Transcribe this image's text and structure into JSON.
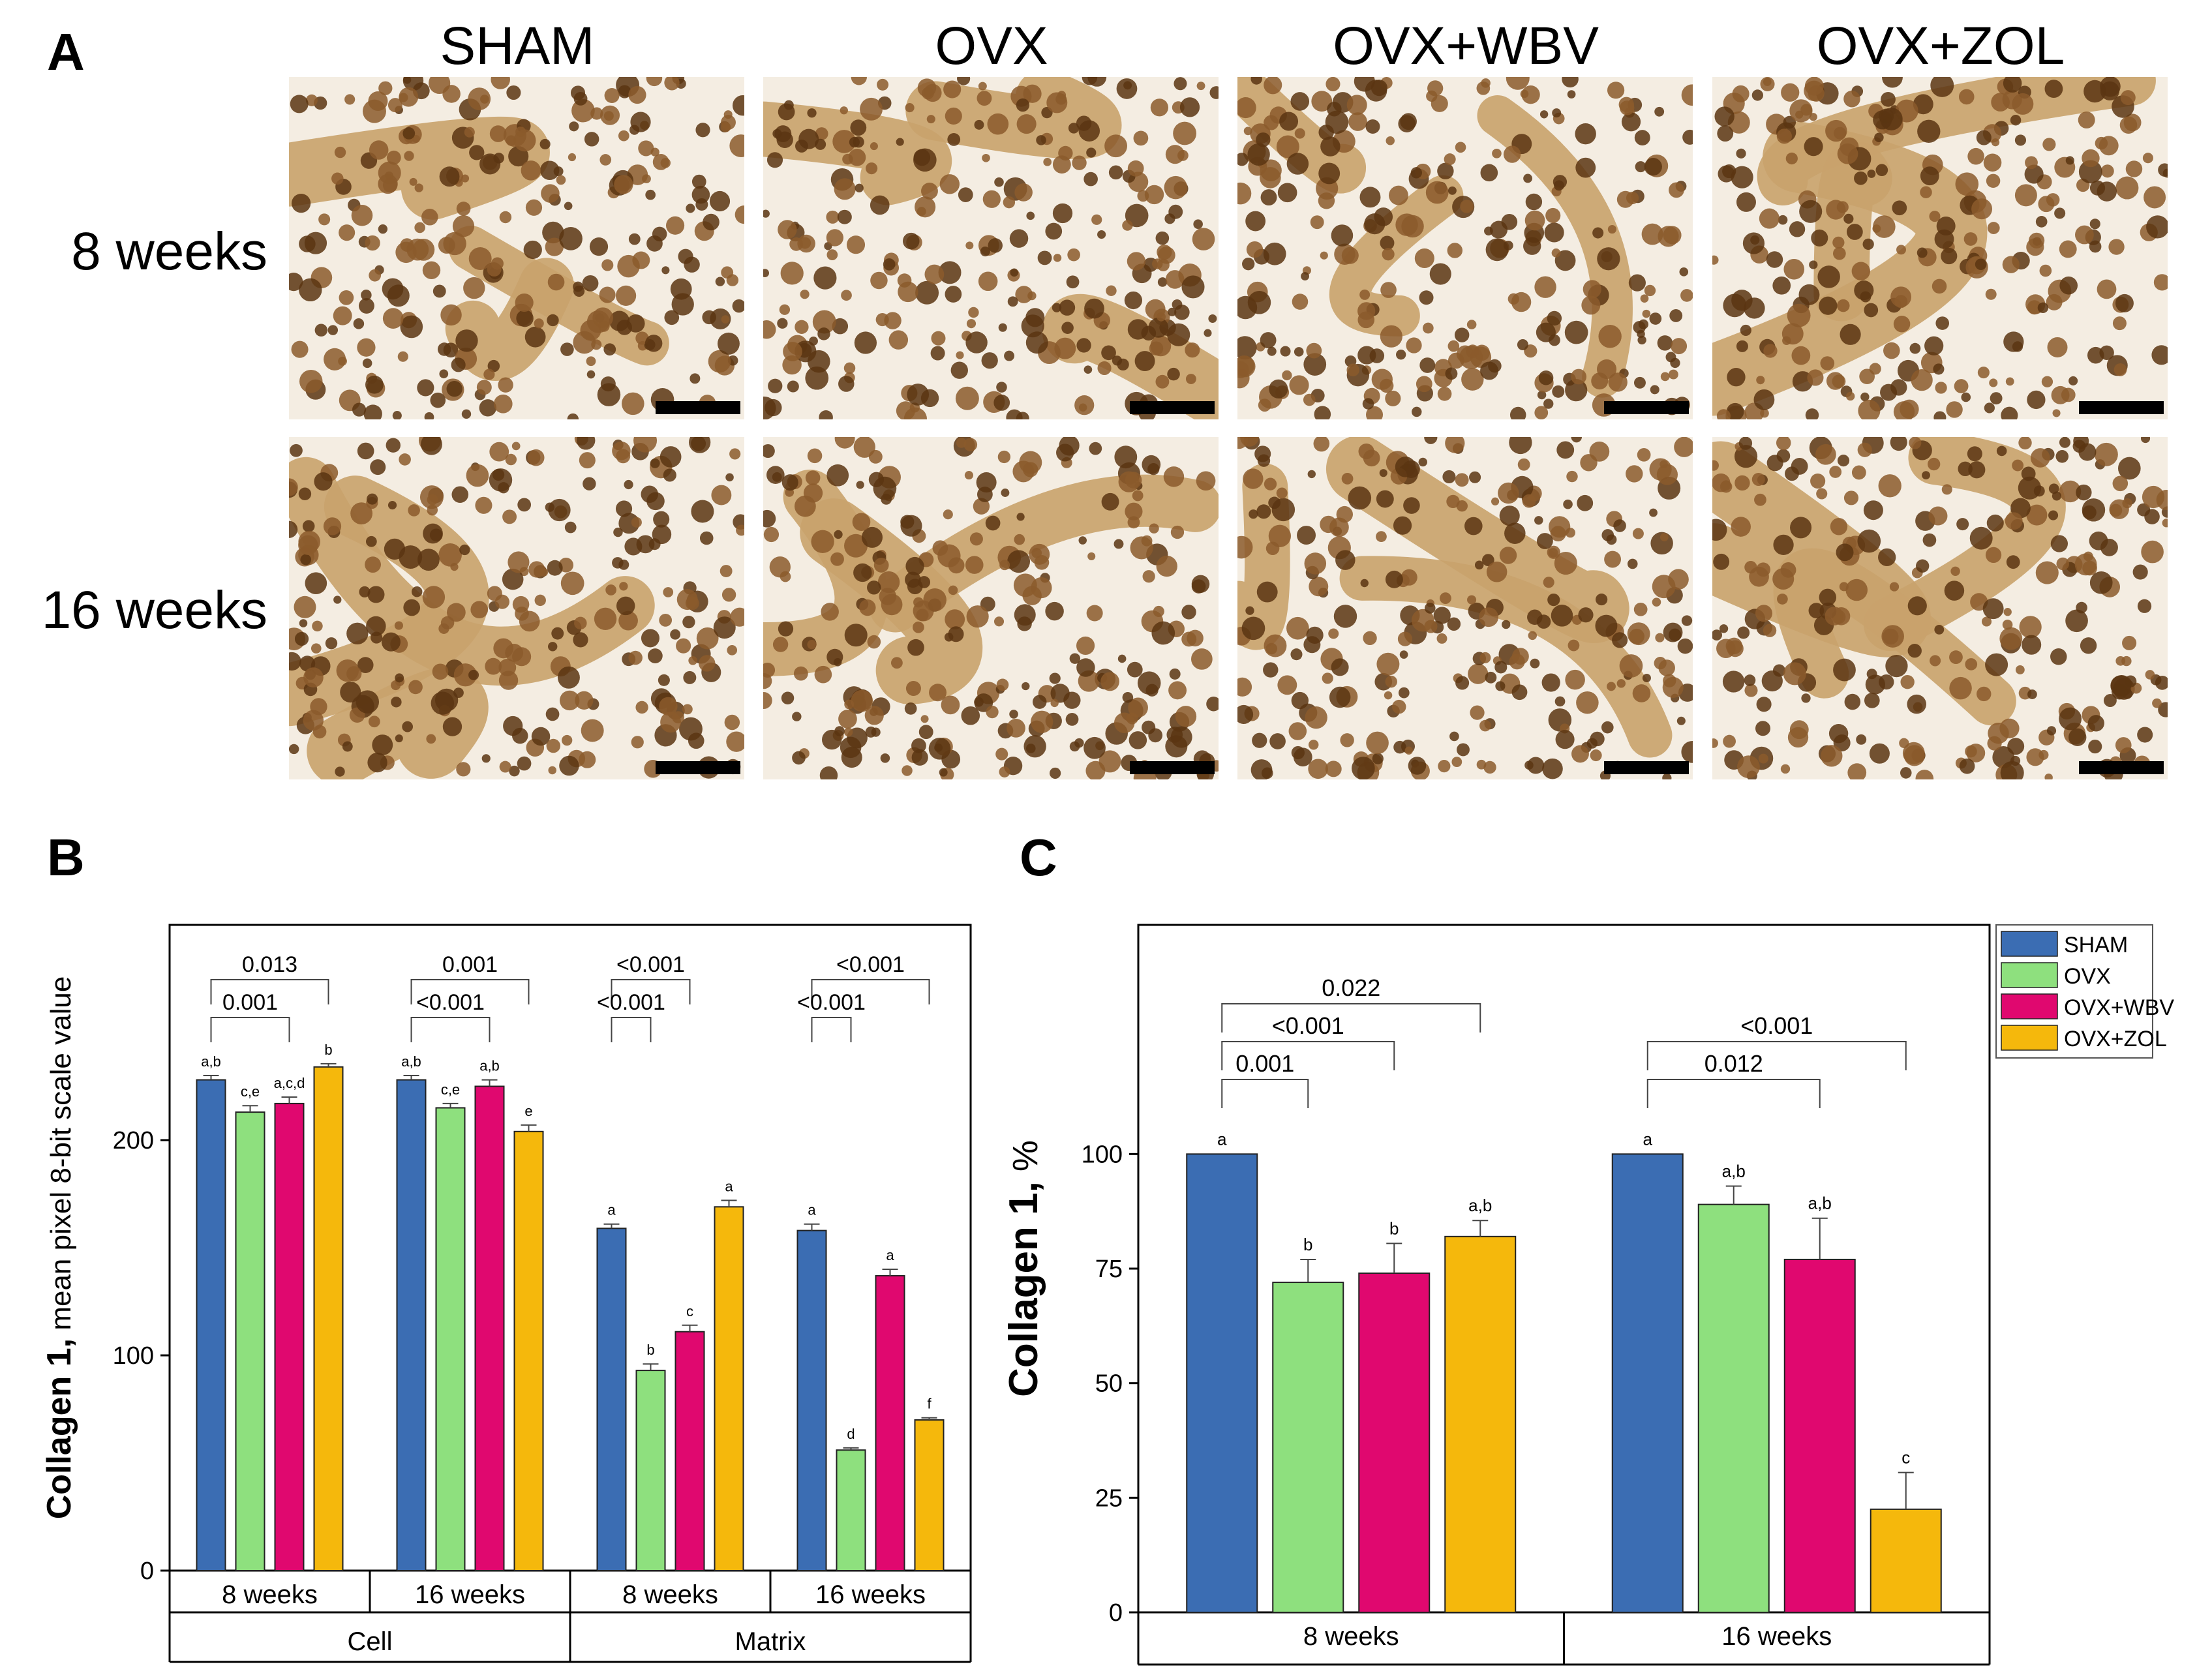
{
  "panel_a": {
    "letter": "A",
    "columns": [
      "SHAM",
      "OVX",
      "OVX+WBV",
      "OVX+ZOL"
    ],
    "rows": [
      "8 weeks",
      "16 weeks"
    ],
    "images": [
      {
        "id": "img-8w-sham",
        "row": 0,
        "col": 0
      },
      {
        "id": "img-8w-ovx",
        "row": 0,
        "col": 1
      },
      {
        "id": "img-8w-wbv",
        "row": 0,
        "col": 2
      },
      {
        "id": "img-8w-zol",
        "row": 0,
        "col": 3
      },
      {
        "id": "img-16w-sham",
        "row": 1,
        "col": 0
      },
      {
        "id": "img-16w-ovx",
        "row": 1,
        "col": 1
      },
      {
        "id": "img-16w-wbv",
        "row": 1,
        "col": 2
      },
      {
        "id": "img-16w-zol",
        "row": 1,
        "col": 3
      }
    ]
  },
  "colors": {
    "SHAM": "#3b6db3",
    "OVX": "#8ee07e",
    "OVX+WBV": "#e0086f",
    "OVX+ZOL": "#f5b80c",
    "tissue_dark": "#5a3512",
    "tissue_mid": "#8b5a2b",
    "tissue_light": "#c9a26b",
    "background": "#f4ede2"
  },
  "chart_data": [
    {
      "panel": "B",
      "type": "bar",
      "ylabel_bold": "Collagen 1,",
      "ylabel_rest": " mean pixel 8-bit scale value",
      "ylim": [
        0,
        300
      ],
      "yticks": [
        0,
        100,
        200
      ],
      "series_names": [
        "SHAM",
        "OVX",
        "OVX+WBV",
        "OVX+ZOL"
      ],
      "groups": [
        {
          "label": "8 weeks",
          "outer": "Cell",
          "values": [
            228,
            213,
            217,
            234
          ],
          "errors": [
            2,
            3,
            3,
            1.5
          ],
          "letters": [
            "a,b",
            "c,e",
            "a,c,d",
            "b"
          ]
        },
        {
          "label": "16 weeks",
          "outer": "Cell",
          "values": [
            228,
            215,
            225,
            204
          ],
          "errors": [
            2,
            2,
            3,
            3
          ],
          "letters": [
            "a,b",
            "c,e",
            "a,b",
            "e"
          ]
        },
        {
          "label": "8 weeks",
          "outer": "Matrix",
          "values": [
            159,
            93,
            111,
            169
          ],
          "errors": [
            2,
            3,
            3,
            3
          ],
          "letters": [
            "a",
            "b",
            "c",
            "a"
          ]
        },
        {
          "label": "16 weeks",
          "outer": "Matrix",
          "values": [
            158,
            56,
            137,
            70
          ],
          "errors": [
            3,
            1,
            3,
            1
          ],
          "letters": [
            "a",
            "d",
            "a",
            "f"
          ]
        }
      ],
      "outer_labels": [
        "Cell",
        "Matrix"
      ],
      "comparisons": [
        {
          "group": 0,
          "from": 0,
          "to": 3,
          "label": "0.013",
          "level": 2
        },
        {
          "group": 0,
          "from": 0,
          "to": 2,
          "label": "0.001",
          "level": 1
        },
        {
          "group": 1,
          "from": 0,
          "to": 3,
          "label": "0.001",
          "level": 2
        },
        {
          "group": 1,
          "from": 0,
          "to": 2,
          "label": "<0.001",
          "level": 1
        },
        {
          "group": 2,
          "from": 0,
          "to": 2,
          "label": "<0.001",
          "level": 2
        },
        {
          "group": 2,
          "from": 0,
          "to": 1,
          "label": "<0.001",
          "level": 1
        },
        {
          "group": 3,
          "from": 0,
          "to": 3,
          "label": "<0.001",
          "level": 2
        },
        {
          "group": 3,
          "from": 0,
          "to": 1,
          "label": "<0.001",
          "level": 1
        }
      ]
    },
    {
      "panel": "C",
      "type": "bar",
      "ylabel_bold": "Collagen 1,",
      "ylabel_rest": " %",
      "ylim": [
        0,
        150
      ],
      "yticks": [
        0,
        25,
        50,
        75,
        100
      ],
      "series_names": [
        "SHAM",
        "OVX",
        "OVX+WBV",
        "OVX+ZOL"
      ],
      "groups": [
        {
          "label": "8 weeks",
          "values": [
            100,
            72,
            74,
            82
          ],
          "errors": [
            0,
            5,
            6.5,
            3.5
          ],
          "letters": [
            "a",
            "b",
            "b",
            "a,b"
          ]
        },
        {
          "label": "16 weeks",
          "values": [
            100,
            89,
            77,
            22.5
          ],
          "errors": [
            0,
            4,
            9,
            8
          ],
          "letters": [
            "a",
            "a,b",
            "a,b",
            "c"
          ]
        }
      ],
      "legend": {
        "entries": [
          "SHAM",
          "OVX",
          "OVX+WBV",
          "OVX+ZOL"
        ],
        "position": "top-right"
      },
      "comparisons": [
        {
          "group": 0,
          "from": 0,
          "to": 3,
          "label": "0.022",
          "level": 3
        },
        {
          "group": 0,
          "from": 0,
          "to": 2,
          "label": "<0.001",
          "level": 2
        },
        {
          "group": 0,
          "from": 0,
          "to": 1,
          "label": "0.001",
          "level": 1
        },
        {
          "group": 1,
          "from": 0,
          "to": 3,
          "label": "<0.001",
          "level": 2
        },
        {
          "group": 1,
          "from": 0,
          "to": 2,
          "label": "0.012",
          "level": 1
        }
      ]
    }
  ],
  "panel_b": {
    "letter": "B"
  },
  "panel_c": {
    "letter": "C"
  }
}
